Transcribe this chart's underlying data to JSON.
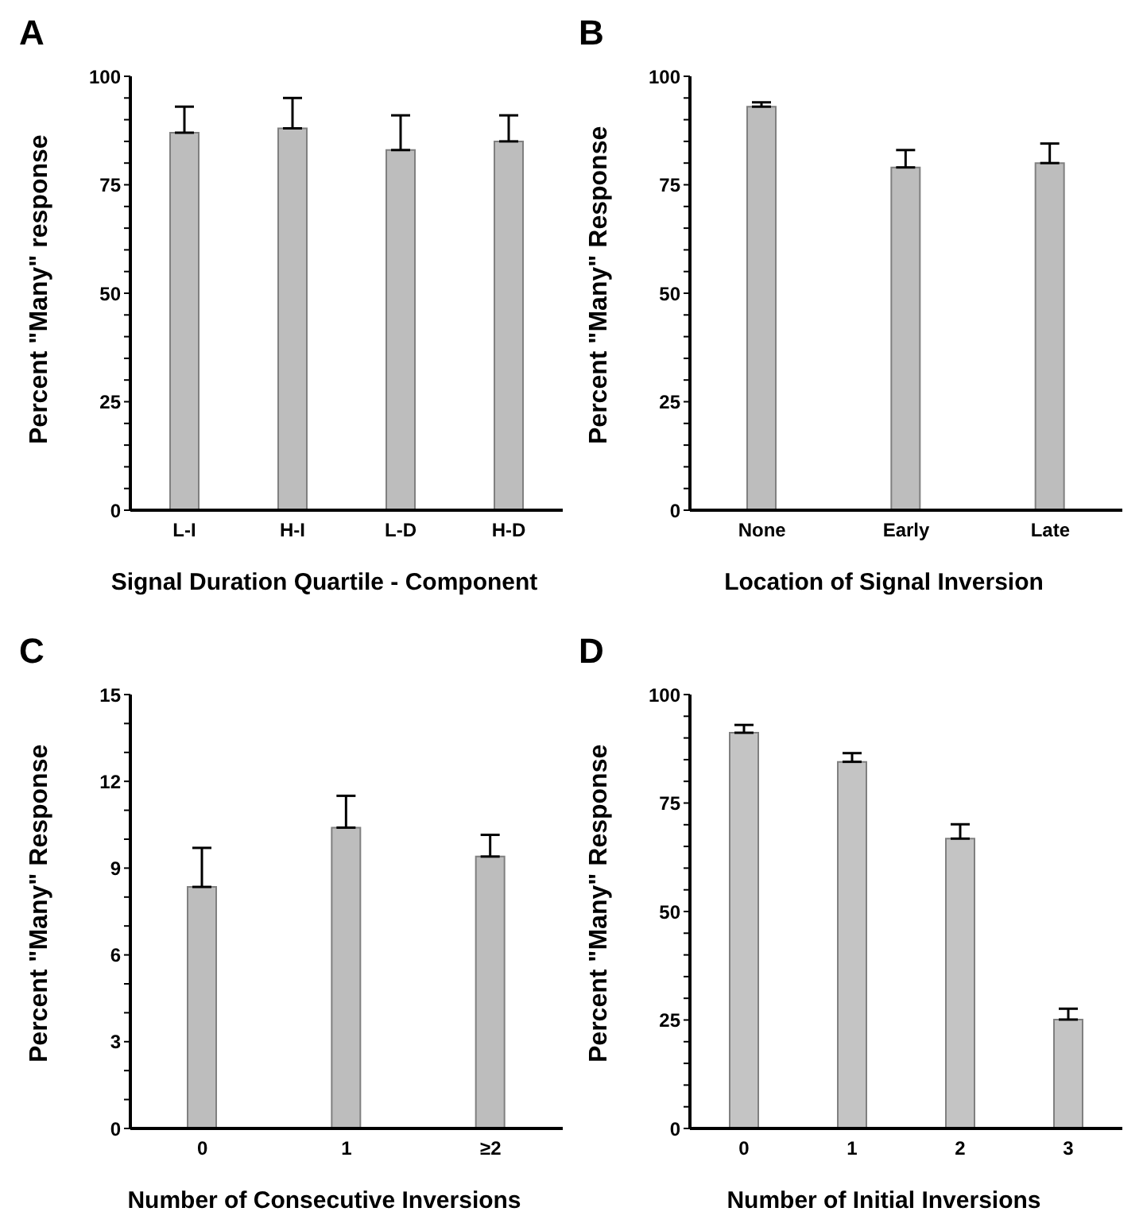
{
  "chart_data": [
    {
      "type": "bar",
      "title": "A",
      "xlabel": "Signal Duration Quartile - Component",
      "ylabel": "Percent \"Many\" response",
      "categories": [
        "L-I",
        "H-I",
        "L-D",
        "H-D"
      ],
      "values": [
        87,
        88,
        83,
        85
      ],
      "errors": [
        [
          87,
          93
        ],
        [
          88,
          95
        ],
        [
          83,
          91
        ],
        [
          85,
          91
        ]
      ],
      "color": "#bdbdbd",
      "ylim": [
        0,
        100
      ],
      "yticks": [
        0,
        {
          "value": 5,
          "label": null
        },
        {
          "value": 10,
          "label": null
        },
        {
          "value": 15,
          "label": null
        },
        {
          "value": 20,
          "label": null
        },
        25,
        {
          "value": 30,
          "label": null
        },
        {
          "value": 35,
          "label": null
        },
        {
          "value": 40,
          "label": null
        },
        {
          "value": 45,
          "label": null
        },
        50,
        {
          "value": 55,
          "label": null
        },
        {
          "value": 60,
          "label": null
        },
        {
          "value": 65,
          "label": null
        },
        {
          "value": 70,
          "label": null
        },
        75,
        {
          "value": 80,
          "label": null
        },
        {
          "value": 85,
          "label": null
        },
        {
          "value": 90,
          "label": null
        },
        {
          "value": 95,
          "label": null
        },
        100
      ],
      "grid": false,
      "legend": false
    },
    {
      "type": "bar",
      "title": "B",
      "xlabel": "Location of Signal Inversion",
      "ylabel": "Percent \"Many\" Response",
      "categories": [
        "None",
        "Early",
        "Late"
      ],
      "values": [
        93,
        79,
        80
      ],
      "errors": [
        [
          93,
          94
        ],
        [
          79,
          83
        ],
        [
          80,
          84.5
        ]
      ],
      "color": "#bdbdbd",
      "ylim": [
        0,
        100
      ],
      "yticks": [
        0,
        {
          "value": 5,
          "label": null
        },
        {
          "value": 10,
          "label": null
        },
        {
          "value": 15,
          "label": null
        },
        {
          "value": 20,
          "label": null
        },
        25,
        {
          "value": 30,
          "label": null
        },
        {
          "value": 35,
          "label": null
        },
        {
          "value": 40,
          "label": null
        },
        {
          "value": 45,
          "label": null
        },
        50,
        {
          "value": 55,
          "label": null
        },
        {
          "value": 60,
          "label": null
        },
        {
          "value": 65,
          "label": null
        },
        {
          "value": 70,
          "label": null
        },
        75,
        {
          "value": 80,
          "label": null
        },
        {
          "value": 85,
          "label": null
        },
        {
          "value": 90,
          "label": null
        },
        {
          "value": 95,
          "label": null
        },
        100
      ],
      "grid": false,
      "legend": false
    },
    {
      "type": "bar",
      "title": "C",
      "xlabel": "Number of Consecutive Inversions",
      "ylabel": "Percent \"Many\" Response",
      "categories": [
        "0",
        "1",
        "≥2"
      ],
      "values": [
        8.35,
        10.4,
        9.4
      ],
      "errors": [
        [
          8.35,
          9.7
        ],
        [
          10.4,
          11.5
        ],
        [
          9.4,
          10.15
        ]
      ],
      "color": "#bdbdbd",
      "ylim": [
        0,
        15
      ],
      "yticks": [
        0,
        {
          "value": 1,
          "label": null
        },
        {
          "value": 2,
          "label": null
        },
        3,
        {
          "value": 4,
          "label": null
        },
        {
          "value": 5,
          "label": null
        },
        6,
        {
          "value": 7,
          "label": null
        },
        {
          "value": 8,
          "label": null
        },
        9,
        {
          "value": 10,
          "label": null
        },
        {
          "value": 11,
          "label": null
        },
        12,
        {
          "value": 13,
          "label": null
        },
        {
          "value": 14,
          "label": null
        },
        15
      ],
      "grid": false,
      "legend": false
    },
    {
      "type": "bar",
      "title": "D",
      "xlabel": "Number of Initial Inversions",
      "ylabel": "Percent \"Many\" Response",
      "categories": [
        "0",
        "1",
        "2",
        "3"
      ],
      "values": [
        91.2,
        84.5,
        66.8,
        25.1
      ],
      "errors": [
        [
          91.2,
          93
        ],
        [
          84.5,
          86.5
        ],
        [
          66.8,
          70.1
        ],
        [
          25.1,
          27.6
        ]
      ],
      "color": "#c4c4c4",
      "ylim": [
        0,
        100
      ],
      "yticks": [
        0,
        {
          "value": 5,
          "label": null
        },
        {
          "value": 10,
          "label": null
        },
        {
          "value": 15,
          "label": null
        },
        {
          "value": 20,
          "label": null
        },
        25,
        {
          "value": 30,
          "label": null
        },
        {
          "value": 35,
          "label": null
        },
        {
          "value": 40,
          "label": null
        },
        {
          "value": 45,
          "label": null
        },
        50,
        {
          "value": 55,
          "label": null
        },
        {
          "value": 60,
          "label": null
        },
        {
          "value": 65,
          "label": null
        },
        {
          "value": 70,
          "label": null
        },
        75,
        {
          "value": 80,
          "label": null
        },
        {
          "value": 85,
          "label": null
        },
        {
          "value": 90,
          "label": null
        },
        {
          "value": 95,
          "label": null
        },
        100
      ],
      "grid": false,
      "legend": false
    }
  ]
}
